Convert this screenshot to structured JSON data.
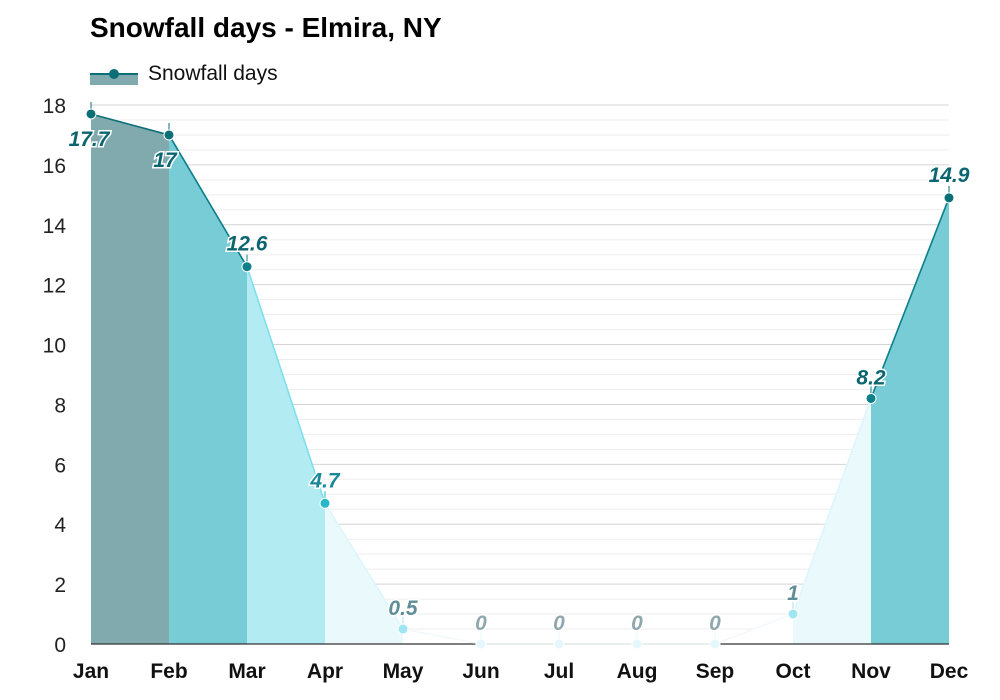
{
  "chart_data": {
    "type": "area",
    "title": "Snowfall days - Elmira, NY",
    "xlabel": "",
    "ylabel": "",
    "categories": [
      "Jan",
      "Feb",
      "Mar",
      "Apr",
      "May",
      "Jun",
      "Jul",
      "Aug",
      "Sep",
      "Oct",
      "Nov",
      "Dec"
    ],
    "series": [
      {
        "name": "Snowfall days",
        "values": [
          17.7,
          17,
          12.6,
          4.7,
          0.5,
          0,
          0,
          0,
          0,
          1,
          8.2,
          14.9
        ],
        "labels": [
          "17.7",
          "17",
          "12.6",
          "4.7",
          "0.5",
          "0",
          "0",
          "0",
          "0",
          "1",
          "8.2",
          "14.9"
        ]
      }
    ],
    "ylim": [
      0,
      18
    ],
    "yticks": [
      "0",
      "2",
      "4",
      "6",
      "8",
      "10",
      "12",
      "14",
      "16",
      "18"
    ],
    "grid": true,
    "legend": "top-left"
  },
  "colors": {
    "level_fills": [
      "#80aaad",
      "#78ccd6",
      "#b3ebf3",
      "#eaf9fc",
      "#ffffff"
    ],
    "level_lines": [
      "#0b6f78",
      "#0b7f8a",
      "#7ee0ee",
      "#ddf6fb",
      "#f3f9fb"
    ],
    "level_points": [
      "#0b6f78",
      "#0b7f8a",
      "#26b7c9",
      "#9ee6f1",
      "#e6f7fb"
    ],
    "level_labels": [
      "#0b6570",
      "#0b6570",
      "#19889a",
      "#5f8e97",
      "#8fa7ad"
    ],
    "legend_line": "#0b6f78",
    "legend_fill": "#80aaad",
    "grid": "#e2e2e2",
    "axis": "#333333"
  }
}
